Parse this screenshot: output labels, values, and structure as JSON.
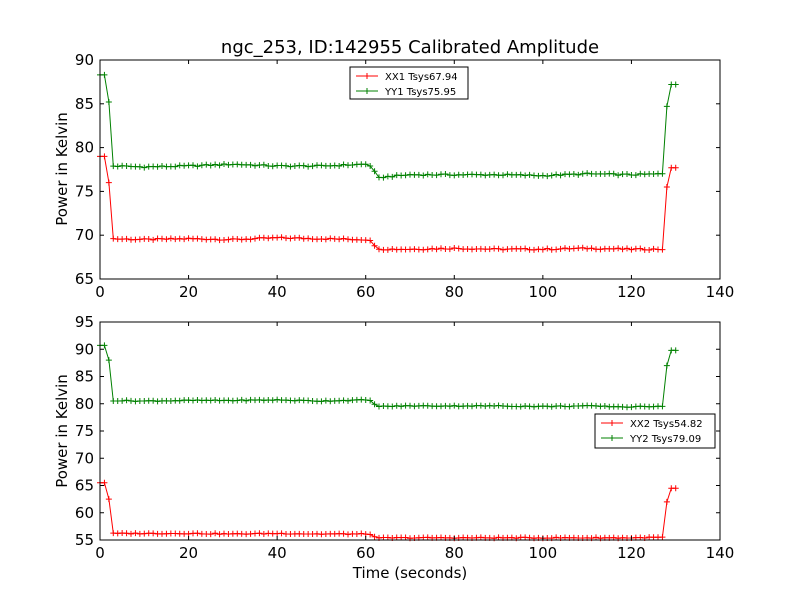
{
  "chart_data": [
    {
      "type": "line",
      "title": "ngc_253, ID:142955 Calibrated Amplitude",
      "xlabel": "",
      "ylabel": "Power in Kelvin",
      "xlim": [
        0,
        140
      ],
      "ylim": [
        65,
        90
      ],
      "xticks": [
        0,
        20,
        40,
        60,
        80,
        100,
        120,
        140
      ],
      "yticks": [
        65,
        70,
        75,
        80,
        85,
        90
      ],
      "legend_position": "top-center",
      "series": [
        {
          "name": "XX1 Tsys67.94",
          "color": "#ff0000",
          "values": [
            [
              0,
              79.0
            ],
            [
              1,
              79.0
            ],
            [
              2,
              76.0
            ],
            [
              2.5,
              69.6
            ],
            [
              10,
              69.5
            ],
            [
              20,
              69.6
            ],
            [
              30,
              69.5
            ],
            [
              40,
              69.7
            ],
            [
              50,
              69.6
            ],
            [
              60,
              69.5
            ],
            [
              61,
              69.4
            ],
            [
              62,
              68.8
            ],
            [
              63,
              68.4
            ],
            [
              70,
              68.4
            ],
            [
              80,
              68.5
            ],
            [
              90,
              68.4
            ],
            [
              100,
              68.4
            ],
            [
              110,
              68.5
            ],
            [
              120,
              68.4
            ],
            [
              127,
              68.4
            ],
            [
              128,
              75.5
            ],
            [
              129,
              77.7
            ],
            [
              130,
              77.7
            ]
          ]
        },
        {
          "name": "YY1 Tsys75.95",
          "color": "#008000",
          "values": [
            [
              0,
              88.3
            ],
            [
              1,
              88.3
            ],
            [
              2,
              85.2
            ],
            [
              2.5,
              77.9
            ],
            [
              10,
              77.8
            ],
            [
              20,
              77.9
            ],
            [
              30,
              78.1
            ],
            [
              40,
              77.9
            ],
            [
              50,
              77.9
            ],
            [
              60,
              78.1
            ],
            [
              61,
              77.9
            ],
            [
              62,
              77.3
            ],
            [
              63,
              76.6
            ],
            [
              70,
              76.9
            ],
            [
              80,
              76.9
            ],
            [
              90,
              76.9
            ],
            [
              100,
              76.8
            ],
            [
              110,
              77.0
            ],
            [
              120,
              76.9
            ],
            [
              127,
              77.0
            ],
            [
              128,
              84.7
            ],
            [
              129,
              87.2
            ],
            [
              130,
              87.2
            ]
          ]
        }
      ]
    },
    {
      "type": "line",
      "title": "",
      "xlabel": "Time (seconds)",
      "ylabel": "Power in Kelvin",
      "xlim": [
        0,
        140
      ],
      "ylim": [
        55,
        95
      ],
      "xticks": [
        0,
        20,
        40,
        60,
        80,
        100,
        120,
        140
      ],
      "yticks": [
        55,
        60,
        65,
        70,
        75,
        80,
        85,
        90,
        95
      ],
      "legend_position": "center-right",
      "series": [
        {
          "name": "XX2 Tsys54.82",
          "color": "#ff0000",
          "values": [
            [
              0,
              65.5
            ],
            [
              1,
              65.5
            ],
            [
              2,
              62.5
            ],
            [
              2.5,
              56.2
            ],
            [
              10,
              56.2
            ],
            [
              20,
              56.2
            ],
            [
              30,
              56.1
            ],
            [
              40,
              56.2
            ],
            [
              50,
              56.1
            ],
            [
              60,
              56.1
            ],
            [
              61,
              56.0
            ],
            [
              62,
              55.6
            ],
            [
              63,
              55.4
            ],
            [
              70,
              55.4
            ],
            [
              80,
              55.4
            ],
            [
              90,
              55.4
            ],
            [
              100,
              55.4
            ],
            [
              110,
              55.4
            ],
            [
              120,
              55.4
            ],
            [
              127,
              55.5
            ],
            [
              128,
              62.0
            ],
            [
              129,
              64.5
            ],
            [
              130,
              64.5
            ]
          ]
        },
        {
          "name": "YY2 Tsys79.09",
          "color": "#008000",
          "values": [
            [
              0,
              90.7
            ],
            [
              1,
              90.7
            ],
            [
              2,
              88.0
            ],
            [
              2.5,
              80.6
            ],
            [
              10,
              80.5
            ],
            [
              20,
              80.6
            ],
            [
              30,
              80.6
            ],
            [
              40,
              80.7
            ],
            [
              50,
              80.5
            ],
            [
              60,
              80.7
            ],
            [
              61,
              80.6
            ],
            [
              62,
              79.9
            ],
            [
              63,
              79.5
            ],
            [
              70,
              79.6
            ],
            [
              80,
              79.6
            ],
            [
              90,
              79.6
            ],
            [
              100,
              79.5
            ],
            [
              110,
              79.6
            ],
            [
              120,
              79.4
            ],
            [
              127,
              79.6
            ],
            [
              128,
              87.0
            ],
            [
              129,
              89.8
            ],
            [
              130,
              89.8
            ]
          ]
        }
      ]
    }
  ]
}
